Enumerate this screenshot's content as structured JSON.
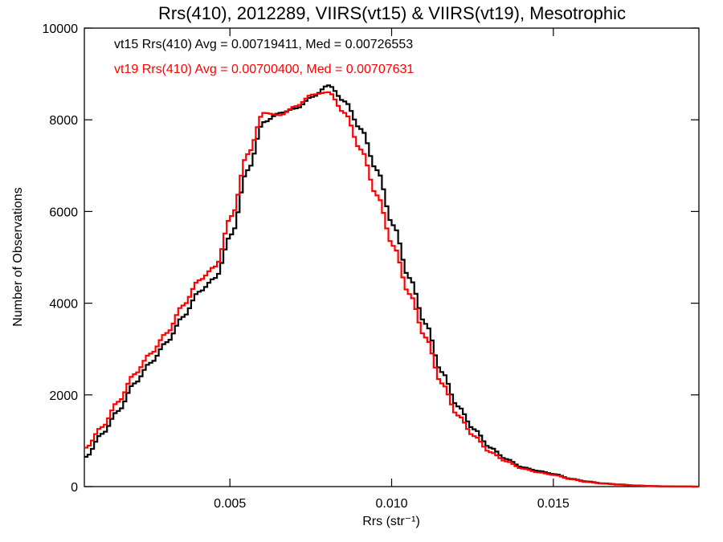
{
  "chart_data": {
    "type": "line",
    "title": "Rrs(410), 2012289, VIIRS(vt15) & VIIRS(vt19), Mesotrophic",
    "xlabel": "Rrs (str⁻¹)",
    "ylabel": "Number of Observations",
    "xlim": [
      0.0005,
      0.0195
    ],
    "ylim": [
      0,
      10000
    ],
    "xticks": [
      0.005,
      0.01,
      0.015
    ],
    "xtick_labels": [
      "0.005",
      "0.010",
      "0.015"
    ],
    "yticks": [
      0,
      2000,
      4000,
      6000,
      8000,
      10000
    ],
    "ytick_labels": [
      "0",
      "2000",
      "4000",
      "6000",
      "8000",
      "10000"
    ],
    "step": true,
    "grid": false,
    "annotations": [
      {
        "text": "vt15 Rrs(410) Avg = 0.00719411, Med = 0.00726553",
        "color": "#000000"
      },
      {
        "text": "vt19 Rrs(410) Avg = 0.00700400, Med = 0.00707631",
        "color": "#ff0000"
      }
    ],
    "series": [
      {
        "color": "#000000",
        "x": [
          0.0005,
          0.001,
          0.0015,
          0.002,
          0.0025,
          0.003,
          0.0035,
          0.004,
          0.0045,
          0.005,
          0.0055,
          0.006,
          0.0065,
          0.007,
          0.0075,
          0.008,
          0.0085,
          0.009,
          0.0095,
          0.01,
          0.0105,
          0.011,
          0.0115,
          0.012,
          0.0125,
          0.013,
          0.0135,
          0.014,
          0.0145,
          0.015,
          0.0155,
          0.016,
          0.0165,
          0.017,
          0.0175,
          0.018,
          0.0185,
          0.019,
          0.0195
        ],
        "values": [
          650,
          1150,
          1650,
          2250,
          2700,
          3150,
          3700,
          4250,
          4550,
          5500,
          6900,
          7950,
          8150,
          8250,
          8500,
          8750,
          8400,
          7800,
          6900,
          5700,
          4550,
          3550,
          2500,
          1750,
          1250,
          850,
          600,
          420,
          340,
          270,
          170,
          110,
          70,
          45,
          25,
          12,
          5,
          2,
          0
        ]
      },
      {
        "color": "#ff0000",
        "x": [
          0.0005,
          0.001,
          0.0015,
          0.002,
          0.0025,
          0.003,
          0.0035,
          0.004,
          0.0045,
          0.005,
          0.0055,
          0.006,
          0.0065,
          0.007,
          0.0075,
          0.008,
          0.0085,
          0.009,
          0.0095,
          0.01,
          0.0105,
          0.011,
          0.0115,
          0.012,
          0.0125,
          0.013,
          0.0135,
          0.014,
          0.0145,
          0.015,
          0.0155,
          0.016,
          0.0165,
          0.017,
          0.0175,
          0.018,
          0.0185,
          0.019,
          0.0195
        ],
        "values": [
          850,
          1300,
          1850,
          2450,
          2900,
          3350,
          3950,
          4500,
          4800,
          5900,
          7250,
          8150,
          8100,
          8300,
          8550,
          8600,
          8150,
          7350,
          6350,
          5250,
          4200,
          3250,
          2250,
          1550,
          1100,
          750,
          550,
          390,
          310,
          250,
          160,
          100,
          65,
          40,
          22,
          10,
          4,
          2,
          0
        ]
      }
    ]
  }
}
